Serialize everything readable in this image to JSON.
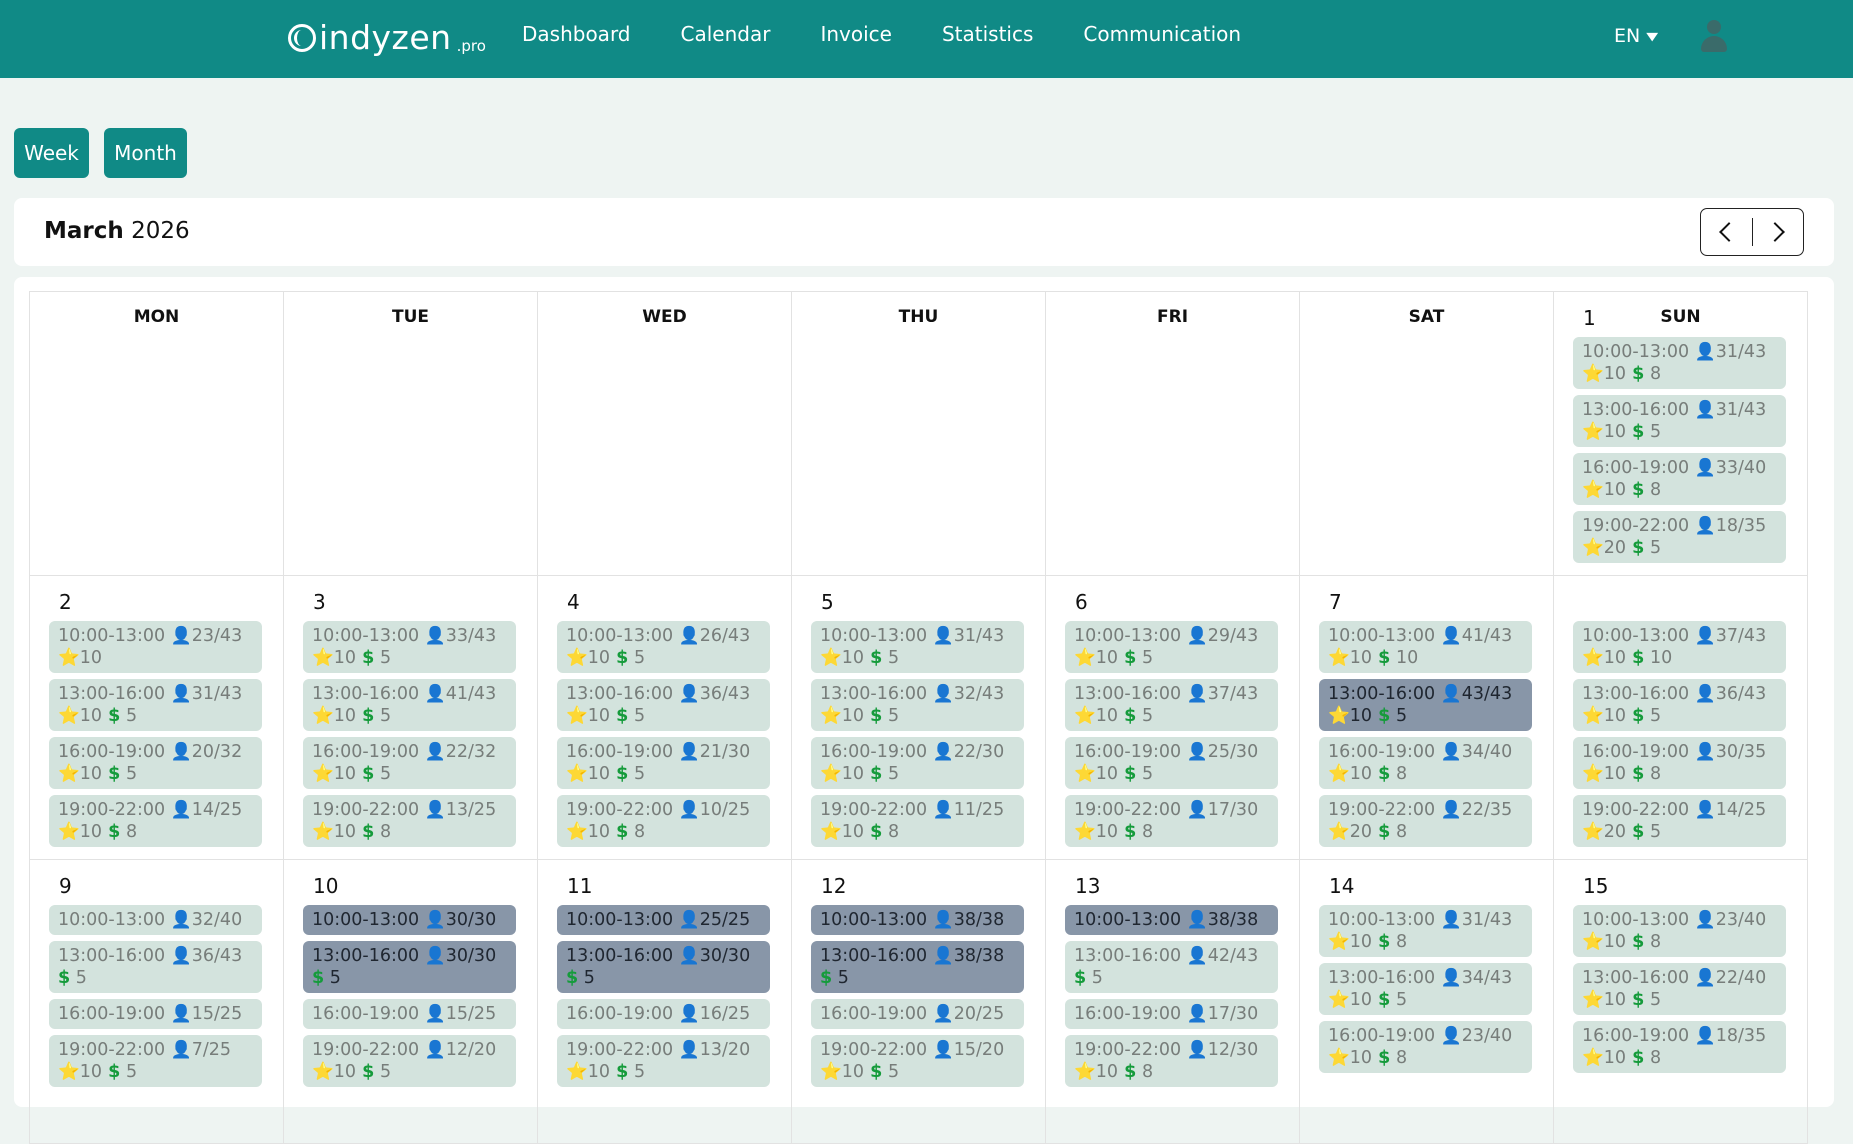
{
  "header": {
    "logo": {
      "name": "indyzen",
      "suffix": ".pro"
    },
    "nav": [
      "Dashboard",
      "Calendar",
      "Invoice",
      "Statistics",
      "Communication"
    ],
    "language": "EN"
  },
  "view_buttons": {
    "week": "Week",
    "month": "Month"
  },
  "calendar": {
    "month": "March",
    "year": "2026",
    "weekdays": [
      "MON",
      "TUE",
      "WED",
      "THU",
      "FRI",
      "SAT",
      "SUN"
    ],
    "weeks": [
      [
        null,
        null,
        null,
        null,
        null,
        null,
        {
          "day": "1",
          "slots": [
            {
              "time": "10:00-13:00",
              "seats": "31/43",
              "stars": "10",
              "price": "8",
              "full": false
            },
            {
              "time": "13:00-16:00",
              "seats": "31/43",
              "stars": "10",
              "price": "5",
              "full": false
            },
            {
              "time": "16:00-19:00",
              "seats": "33/40",
              "stars": "10",
              "price": "8",
              "full": false
            },
            {
              "time": "19:00-22:00",
              "seats": "18/35",
              "stars": "20",
              "price": "5",
              "full": false
            }
          ]
        }
      ],
      [
        {
          "day": "2",
          "slots": [
            {
              "time": "10:00-13:00",
              "seats": "23/43",
              "stars": "10",
              "price": null,
              "full": false
            },
            {
              "time": "13:00-16:00",
              "seats": "31/43",
              "stars": "10",
              "price": "5",
              "full": false
            },
            {
              "time": "16:00-19:00",
              "seats": "20/32",
              "stars": "10",
              "price": "5",
              "full": false
            },
            {
              "time": "19:00-22:00",
              "seats": "14/25",
              "stars": "10",
              "price": "8",
              "full": false
            }
          ]
        },
        {
          "day": "3",
          "slots": [
            {
              "time": "10:00-13:00",
              "seats": "33/43",
              "stars": "10",
              "price": "5",
              "full": false
            },
            {
              "time": "13:00-16:00",
              "seats": "41/43",
              "stars": "10",
              "price": "5",
              "full": false
            },
            {
              "time": "16:00-19:00",
              "seats": "22/32",
              "stars": "10",
              "price": "5",
              "full": false
            },
            {
              "time": "19:00-22:00",
              "seats": "13/25",
              "stars": "10",
              "price": "8",
              "full": false
            }
          ]
        },
        {
          "day": "4",
          "slots": [
            {
              "time": "10:00-13:00",
              "seats": "26/43",
              "stars": "10",
              "price": "5",
              "full": false
            },
            {
              "time": "13:00-16:00",
              "seats": "36/43",
              "stars": "10",
              "price": "5",
              "full": false
            },
            {
              "time": "16:00-19:00",
              "seats": "21/30",
              "stars": "10",
              "price": "5",
              "full": false
            },
            {
              "time": "19:00-22:00",
              "seats": "10/25",
              "stars": "10",
              "price": "8",
              "full": false
            }
          ]
        },
        {
          "day": "5",
          "slots": [
            {
              "time": "10:00-13:00",
              "seats": "31/43",
              "stars": "10",
              "price": "5",
              "full": false
            },
            {
              "time": "13:00-16:00",
              "seats": "32/43",
              "stars": "10",
              "price": "5",
              "full": false
            },
            {
              "time": "16:00-19:00",
              "seats": "22/30",
              "stars": "10",
              "price": "5",
              "full": false
            },
            {
              "time": "19:00-22:00",
              "seats": "11/25",
              "stars": "10",
              "price": "8",
              "full": false
            }
          ]
        },
        {
          "day": "6",
          "slots": [
            {
              "time": "10:00-13:00",
              "seats": "29/43",
              "stars": "10",
              "price": "5",
              "full": false
            },
            {
              "time": "13:00-16:00",
              "seats": "37/43",
              "stars": "10",
              "price": "5",
              "full": false
            },
            {
              "time": "16:00-19:00",
              "seats": "25/30",
              "stars": "10",
              "price": "5",
              "full": false
            },
            {
              "time": "19:00-22:00",
              "seats": "17/30",
              "stars": "10",
              "price": "8",
              "full": false
            }
          ]
        },
        {
          "day": "7",
          "slots": [
            {
              "time": "10:00-13:00",
              "seats": "41/43",
              "stars": "10",
              "price": "10",
              "full": false
            },
            {
              "time": "13:00-16:00",
              "seats": "43/43",
              "stars": "10",
              "price": "5",
              "full": true
            },
            {
              "time": "16:00-19:00",
              "seats": "34/40",
              "stars": "10",
              "price": "8",
              "full": false
            },
            {
              "time": "19:00-22:00",
              "seats": "22/35",
              "stars": "20",
              "price": "8",
              "full": false
            }
          ]
        },
        {
          "day": "",
          "slots": [
            {
              "time": "10:00-13:00",
              "seats": "37/43",
              "stars": "10",
              "price": "10",
              "full": false
            },
            {
              "time": "13:00-16:00",
              "seats": "36/43",
              "stars": "10",
              "price": "5",
              "full": false
            },
            {
              "time": "16:00-19:00",
              "seats": "30/35",
              "stars": "10",
              "price": "8",
              "full": false
            },
            {
              "time": "19:00-22:00",
              "seats": "14/25",
              "stars": "20",
              "price": "5",
              "full": false
            }
          ]
        }
      ],
      [
        {
          "day": "9",
          "slots": [
            {
              "time": "10:00-13:00",
              "seats": "32/40",
              "stars": null,
              "price": null,
              "full": false
            },
            {
              "time": "13:00-16:00",
              "seats": "36/43",
              "stars": null,
              "price": "5",
              "full": false
            },
            {
              "time": "16:00-19:00",
              "seats": "15/25",
              "stars": null,
              "price": null,
              "full": false
            },
            {
              "time": "19:00-22:00",
              "seats": "7/25",
              "stars": "10",
              "price": "5",
              "full": false
            }
          ]
        },
        {
          "day": "10",
          "slots": [
            {
              "time": "10:00-13:00",
              "seats": "30/30",
              "stars": null,
              "price": null,
              "full": true
            },
            {
              "time": "13:00-16:00",
              "seats": "30/30",
              "stars": null,
              "price": "5",
              "full": true
            },
            {
              "time": "16:00-19:00",
              "seats": "15/25",
              "stars": null,
              "price": null,
              "full": false
            },
            {
              "time": "19:00-22:00",
              "seats": "12/20",
              "stars": "10",
              "price": "5",
              "full": false
            }
          ]
        },
        {
          "day": "11",
          "slots": [
            {
              "time": "10:00-13:00",
              "seats": "25/25",
              "stars": null,
              "price": null,
              "full": true
            },
            {
              "time": "13:00-16:00",
              "seats": "30/30",
              "stars": null,
              "price": "5",
              "full": true
            },
            {
              "time": "16:00-19:00",
              "seats": "16/25",
              "stars": null,
              "price": null,
              "full": false
            },
            {
              "time": "19:00-22:00",
              "seats": "13/20",
              "stars": "10",
              "price": "5",
              "full": false
            }
          ]
        },
        {
          "day": "12",
          "slots": [
            {
              "time": "10:00-13:00",
              "seats": "38/38",
              "stars": null,
              "price": null,
              "full": true
            },
            {
              "time": "13:00-16:00",
              "seats": "38/38",
              "stars": null,
              "price": "5",
              "full": true
            },
            {
              "time": "16:00-19:00",
              "seats": "20/25",
              "stars": null,
              "price": null,
              "full": false
            },
            {
              "time": "19:00-22:00",
              "seats": "15/20",
              "stars": "10",
              "price": "5",
              "full": false
            }
          ]
        },
        {
          "day": "13",
          "slots": [
            {
              "time": "10:00-13:00",
              "seats": "38/38",
              "stars": null,
              "price": null,
              "full": true
            },
            {
              "time": "13:00-16:00",
              "seats": "42/43",
              "stars": null,
              "price": "5",
              "full": false
            },
            {
              "time": "16:00-19:00",
              "seats": "17/30",
              "stars": null,
              "price": null,
              "full": false
            },
            {
              "time": "19:00-22:00",
              "seats": "12/30",
              "stars": "10",
              "price": "8",
              "full": false
            }
          ]
        },
        {
          "day": "14",
          "slots": [
            {
              "time": "10:00-13:00",
              "seats": "31/43",
              "stars": "10",
              "price": "8",
              "full": false
            },
            {
              "time": "13:00-16:00",
              "seats": "34/43",
              "stars": "10",
              "price": "5",
              "full": false
            },
            {
              "time": "16:00-19:00",
              "seats": "23/40",
              "stars": "10",
              "price": "8",
              "full": false
            }
          ]
        },
        {
          "day": "15",
          "slots": [
            {
              "time": "10:00-13:00",
              "seats": "23/40",
              "stars": "10",
              "price": "8",
              "full": false
            },
            {
              "time": "13:00-16:00",
              "seats": "22/40",
              "stars": "10",
              "price": "5",
              "full": false
            },
            {
              "time": "16:00-19:00",
              "seats": "18/35",
              "stars": "10",
              "price": "8",
              "full": false
            }
          ]
        }
      ]
    ]
  }
}
